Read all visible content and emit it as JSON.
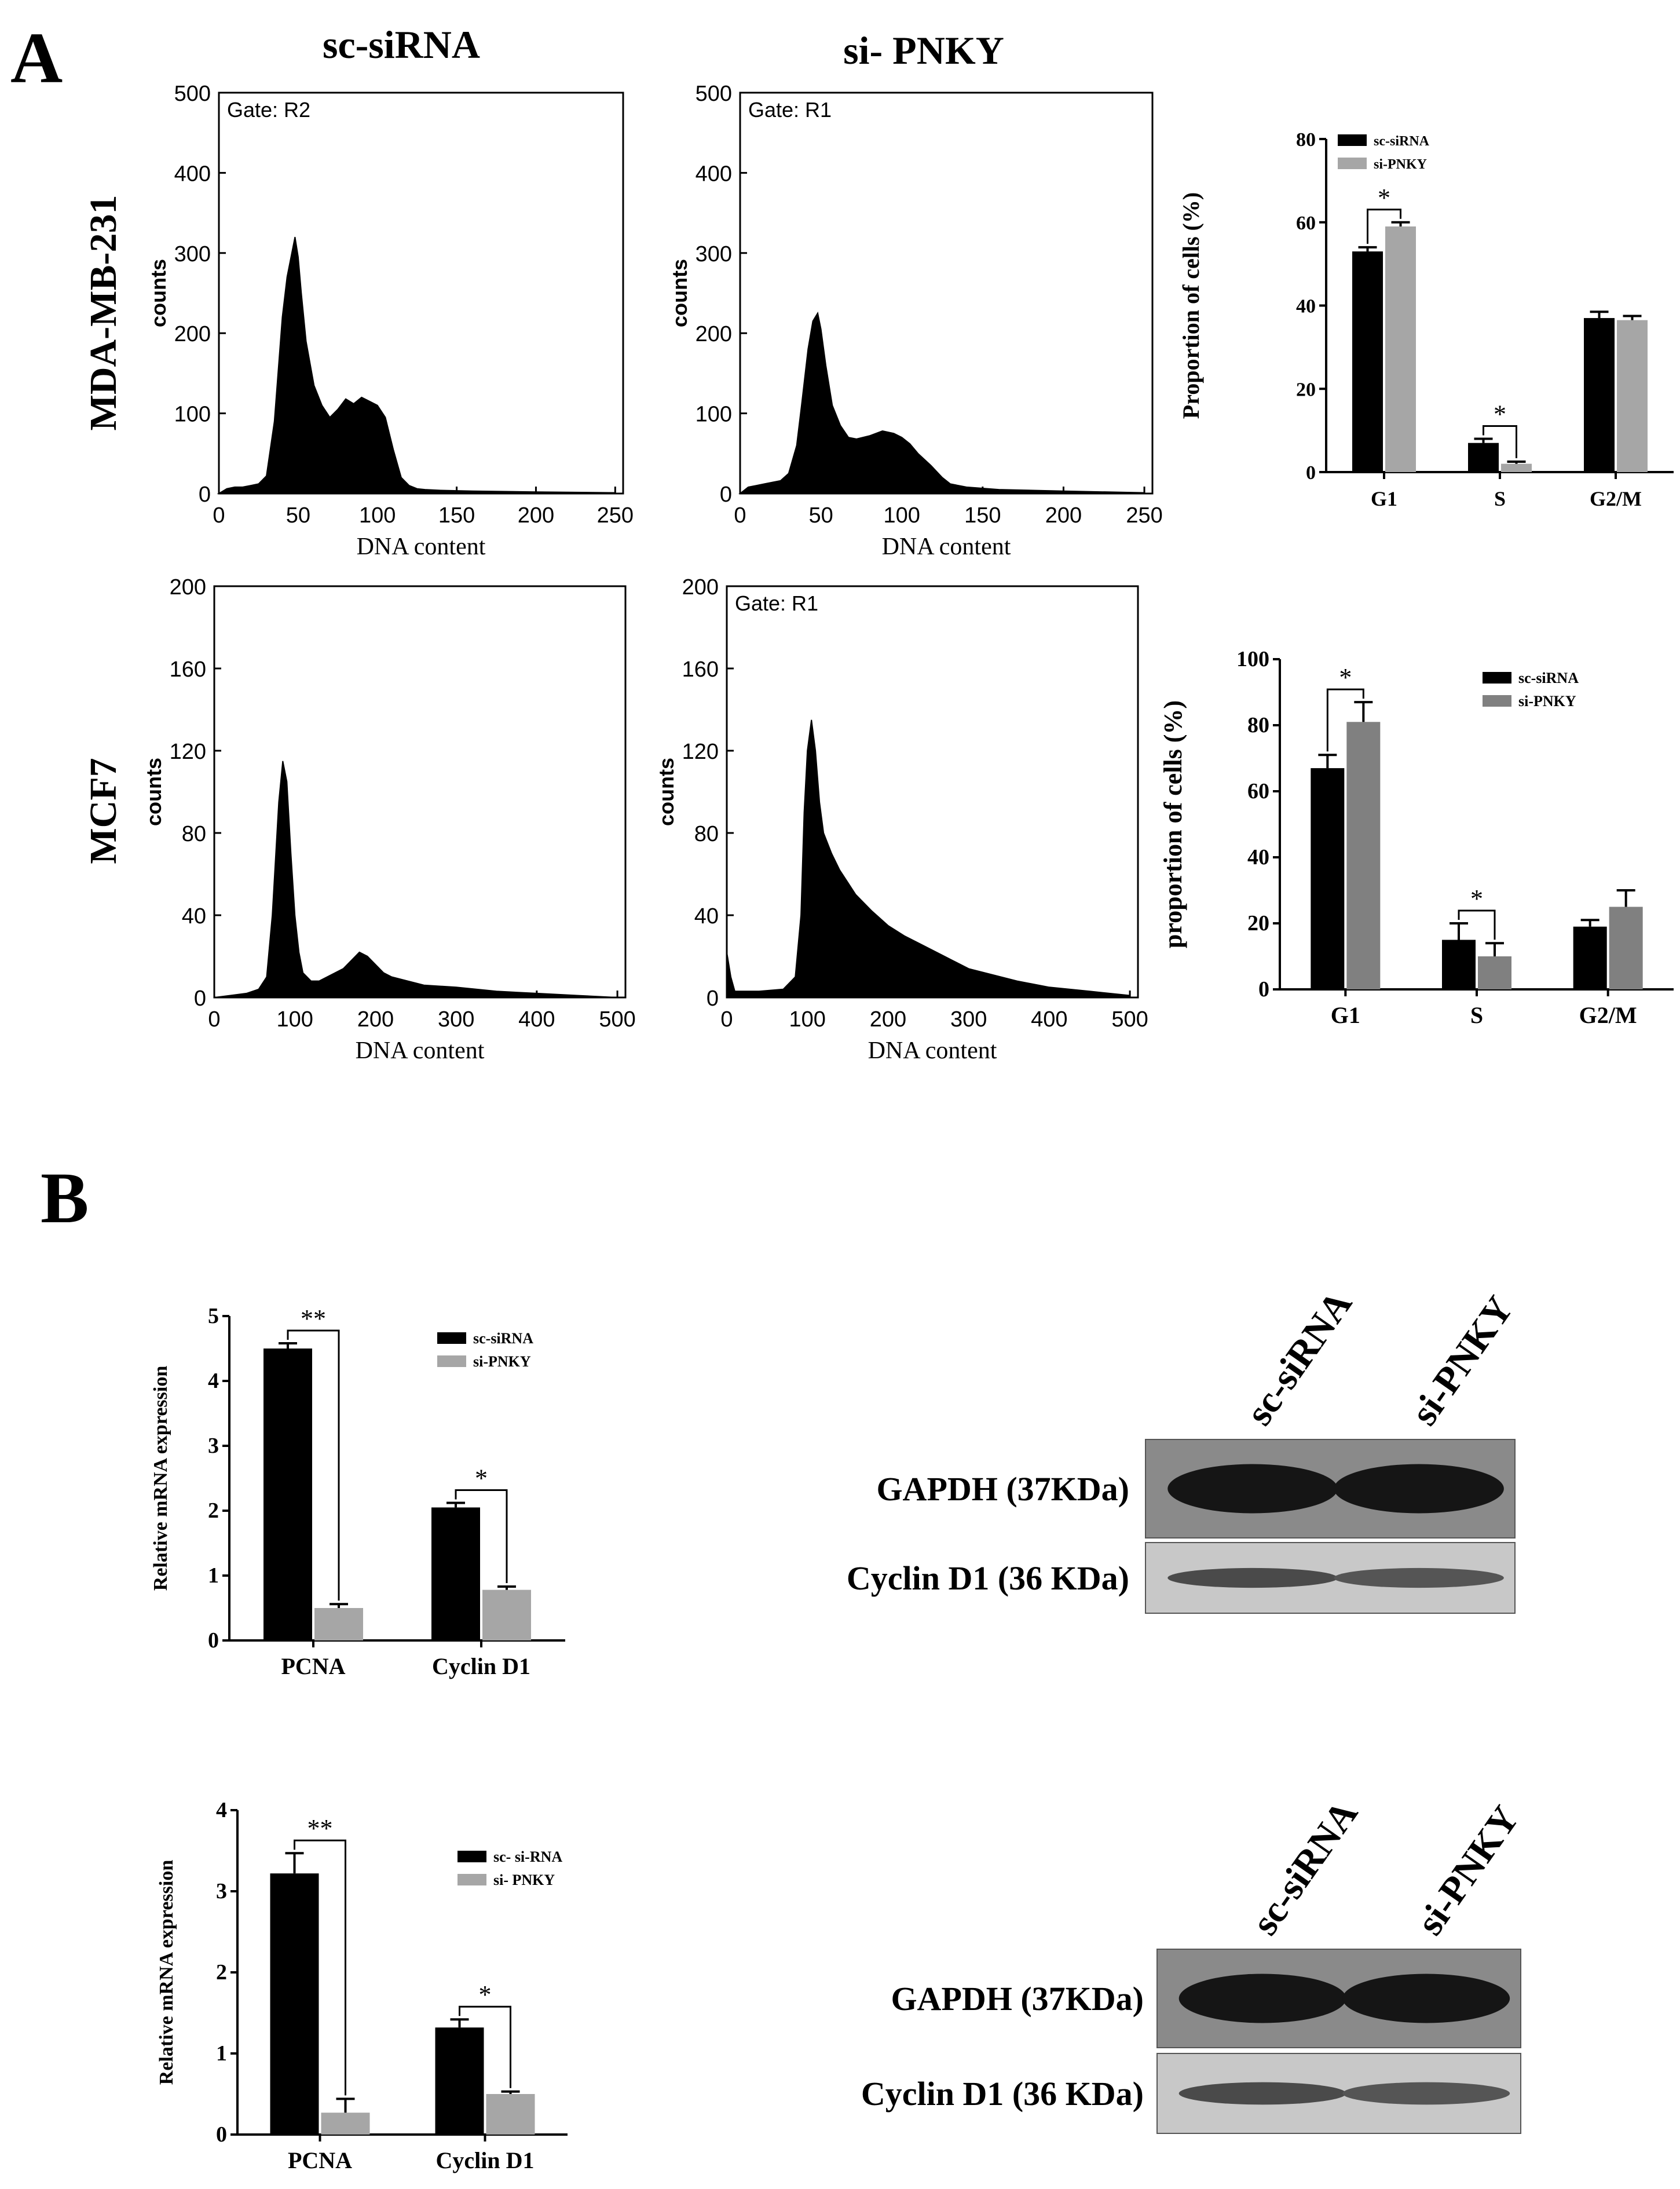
{
  "figure": {
    "panel_a_letter": "A",
    "panel_b_letter": "B",
    "col_sc": "sc-siRNA",
    "col_si": "si- PNKY",
    "row_mda": "MDA-MB-231",
    "row_mcf7": "MCF7"
  },
  "chart_data": [
    {
      "id": "hist_mda_sc",
      "type": "area",
      "title": "Gate: R2",
      "xlabel": "DNA content",
      "ylabel": "counts",
      "xlim": [
        0,
        255
      ],
      "ylim": [
        0,
        500
      ],
      "xticks": [
        0,
        50,
        100,
        150,
        200,
        250
      ],
      "yticks": [
        0,
        100,
        200,
        300,
        400,
        500
      ],
      "x": [
        0,
        5,
        10,
        15,
        20,
        25,
        30,
        35,
        40,
        43,
        46,
        48,
        50,
        52,
        55,
        60,
        65,
        70,
        75,
        80,
        85,
        90,
        95,
        100,
        105,
        110,
        115,
        120,
        125,
        130,
        140,
        160,
        200,
        250
      ],
      "y": [
        0,
        6,
        8,
        8,
        10,
        12,
        22,
        90,
        220,
        270,
        300,
        320,
        295,
        250,
        190,
        135,
        110,
        95,
        105,
        118,
        112,
        120,
        115,
        110,
        95,
        55,
        20,
        10,
        6,
        5,
        4,
        3,
        2,
        1
      ]
    },
    {
      "id": "hist_mda_si",
      "type": "area",
      "title": "Gate: R1",
      "xlabel": "DNA content",
      "ylabel": "counts",
      "xlim": [
        0,
        255
      ],
      "ylim": [
        0,
        500
      ],
      "xticks": [
        0,
        50,
        100,
        150,
        200,
        250
      ],
      "yticks": [
        0,
        100,
        200,
        300,
        400,
        500
      ],
      "x": [
        0,
        5,
        10,
        15,
        20,
        25,
        30,
        35,
        38,
        42,
        45,
        48,
        50,
        53,
        57,
        62,
        67,
        72,
        80,
        88,
        95,
        100,
        105,
        110,
        118,
        125,
        130,
        140,
        160,
        200,
        250
      ],
      "y": [
        0,
        8,
        10,
        12,
        14,
        16,
        25,
        60,
        110,
        180,
        215,
        225,
        205,
        160,
        110,
        85,
        70,
        68,
        72,
        78,
        75,
        70,
        62,
        50,
        35,
        20,
        12,
        8,
        5,
        3,
        1
      ]
    },
    {
      "id": "hist_mcf7_sc",
      "type": "area",
      "title": "",
      "xlabel": "DNA content",
      "ylabel": "counts",
      "xlim": [
        0,
        510
      ],
      "ylim": [
        0,
        200
      ],
      "xticks": [
        0,
        100,
        200,
        300,
        400,
        500
      ],
      "yticks": [
        0,
        40,
        80,
        120,
        160,
        200
      ],
      "x": [
        0,
        20,
        40,
        55,
        65,
        72,
        80,
        85,
        90,
        95,
        100,
        105,
        110,
        120,
        130,
        140,
        150,
        160,
        170,
        180,
        190,
        200,
        210,
        220,
        240,
        260,
        300,
        350,
        400,
        450,
        500
      ],
      "y": [
        0,
        1,
        2,
        4,
        10,
        40,
        95,
        115,
        105,
        70,
        40,
        22,
        12,
        8,
        8,
        10,
        12,
        14,
        18,
        22,
        20,
        16,
        12,
        10,
        8,
        6,
        5,
        3,
        2,
        1,
        0
      ]
    },
    {
      "id": "hist_mcf7_si",
      "type": "area",
      "title": "Gate: R1",
      "xlabel": "DNA content",
      "ylabel": "counts",
      "xlim": [
        0,
        510
      ],
      "ylim": [
        0,
        200
      ],
      "xticks": [
        0,
        100,
        200,
        300,
        400,
        500
      ],
      "yticks": [
        0,
        40,
        80,
        120,
        160,
        200
      ],
      "x": [
        0,
        5,
        10,
        40,
        70,
        85,
        92,
        96,
        100,
        105,
        110,
        115,
        120,
        130,
        140,
        150,
        160,
        180,
        200,
        220,
        240,
        260,
        280,
        300,
        330,
        360,
        400,
        450,
        500
      ],
      "y": [
        22,
        10,
        3,
        3,
        4,
        10,
        40,
        90,
        120,
        135,
        120,
        95,
        80,
        70,
        62,
        56,
        50,
        42,
        35,
        30,
        26,
        22,
        18,
        14,
        11,
        8,
        5,
        3,
        1
      ]
    },
    {
      "id": "bar_mda_cycle",
      "type": "bar",
      "ylabel": "Proportion of cells (%)",
      "ylim": [
        0,
        80
      ],
      "yticks": [
        0,
        20,
        40,
        60,
        80
      ],
      "categories": [
        "G1",
        "S",
        "G2/M"
      ],
      "series": [
        {
          "name": "sc-siRNA",
          "color": "#000000",
          "values": [
            53,
            7,
            37
          ],
          "errors": [
            1,
            1,
            1.5
          ]
        },
        {
          "name": "si-PNKY",
          "color": "#a6a6a6",
          "values": [
            59,
            2,
            36.5
          ],
          "errors": [
            1,
            0.5,
            1
          ]
        }
      ],
      "significance": [
        {
          "category": "G1",
          "label": "*"
        },
        {
          "category": "S",
          "label": "*"
        }
      ]
    },
    {
      "id": "bar_mcf7_cycle",
      "type": "bar",
      "ylabel": "proportion of cells (%)",
      "ylim": [
        0,
        100
      ],
      "yticks": [
        0,
        20,
        40,
        60,
        80,
        100
      ],
      "categories": [
        "G1",
        "S",
        "G2/M"
      ],
      "series": [
        {
          "name": "sc-siRNA",
          "color": "#000000",
          "values": [
            67,
            15,
            19
          ],
          "errors": [
            4,
            5,
            2
          ]
        },
        {
          "name": "si-PNKY",
          "color": "#808080",
          "values": [
            81,
            10,
            25
          ],
          "errors": [
            6,
            4,
            5
          ]
        }
      ],
      "significance": [
        {
          "category": "G1",
          "label": "*"
        },
        {
          "category": "S",
          "label": "*"
        }
      ]
    },
    {
      "id": "bar_mda_mrna",
      "type": "bar",
      "ylabel": "Relative mRNA expression",
      "ylim": [
        0,
        5
      ],
      "yticks": [
        0,
        1,
        2,
        3,
        4,
        5
      ],
      "categories": [
        "PCNA",
        "Cyclin D1"
      ],
      "series": [
        {
          "name": "sc-siRNA",
          "color": "#000000",
          "values": [
            4.5,
            2.05
          ],
          "errors": [
            0.08,
            0.07
          ]
        },
        {
          "name": "si-PNKY",
          "color": "#a6a6a6",
          "values": [
            0.5,
            0.78
          ],
          "errors": [
            0.06,
            0.05
          ]
        }
      ],
      "significance": [
        {
          "category": "PCNA",
          "label": "**"
        },
        {
          "category": "Cyclin D1",
          "label": "*"
        }
      ]
    },
    {
      "id": "bar_mcf7_mrna",
      "type": "bar",
      "ylabel": "Relative mRNA expression",
      "ylim": [
        0,
        4
      ],
      "yticks": [
        0,
        1,
        2,
        3,
        4
      ],
      "categories": [
        "PCNA",
        "Cyclin D1"
      ],
      "series": [
        {
          "name": "sc- si-RNA",
          "color": "#000000",
          "values": [
            3.22,
            1.32
          ],
          "errors": [
            0.25,
            0.1
          ]
        },
        {
          "name": "si- PNKY",
          "color": "#a6a6a6",
          "values": [
            0.27,
            0.5
          ],
          "errors": [
            0.17,
            0.03
          ]
        }
      ],
      "significance": [
        {
          "category": "PCNA",
          "label": "**"
        },
        {
          "category": "Cyclin D1",
          "label": "*"
        }
      ]
    }
  ],
  "blots": [
    {
      "id": "blot_mda",
      "lanes": [
        "sc-siRNA",
        "si-PNKY"
      ],
      "rows": [
        "GAPDH (37KDa)",
        "Cyclin D1 (36 KDa)"
      ]
    },
    {
      "id": "blot_mcf7",
      "lanes": [
        "sc-siRNA",
        "si-PNKY"
      ],
      "rows": [
        "GAPDH (37KDa)",
        "Cyclin D1 (36 KDa)"
      ]
    }
  ]
}
